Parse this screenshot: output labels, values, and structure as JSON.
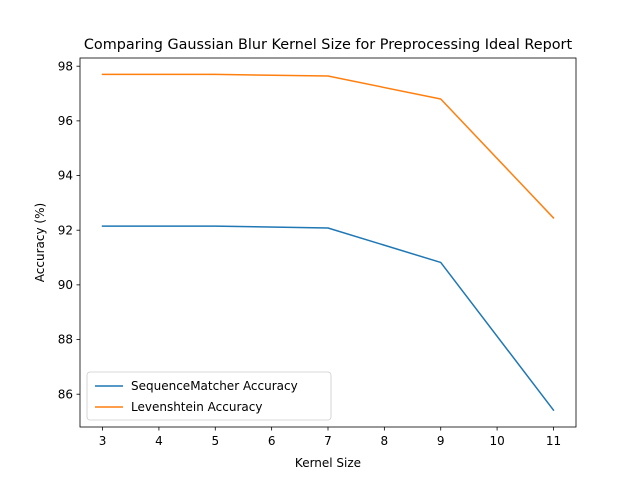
{
  "chart_data": {
    "type": "line",
    "title": "Comparing Gaussian Blur Kernel Size for Preprocessing Ideal Report",
    "xlabel": "Kernel Size",
    "ylabel": "Accuracy (%)",
    "x": [
      3,
      5,
      7,
      9,
      11
    ],
    "xlim": [
      2.6,
      11.4
    ],
    "ylim": [
      84.8,
      98.3
    ],
    "xticks": [
      3,
      4,
      5,
      6,
      7,
      8,
      9,
      10,
      11
    ],
    "yticks": [
      86,
      88,
      90,
      92,
      94,
      96,
      98
    ],
    "grid": false,
    "legend_position": "lower-left",
    "series": [
      {
        "name": "SequenceMatcher Accuracy",
        "color": "#1f77b4",
        "values": [
          92.15,
          92.15,
          92.08,
          90.82,
          85.42
        ]
      },
      {
        "name": "Levenshtein Accuracy",
        "color": "#ff7f0e",
        "values": [
          97.7,
          97.7,
          97.64,
          96.8,
          92.45
        ]
      }
    ]
  }
}
